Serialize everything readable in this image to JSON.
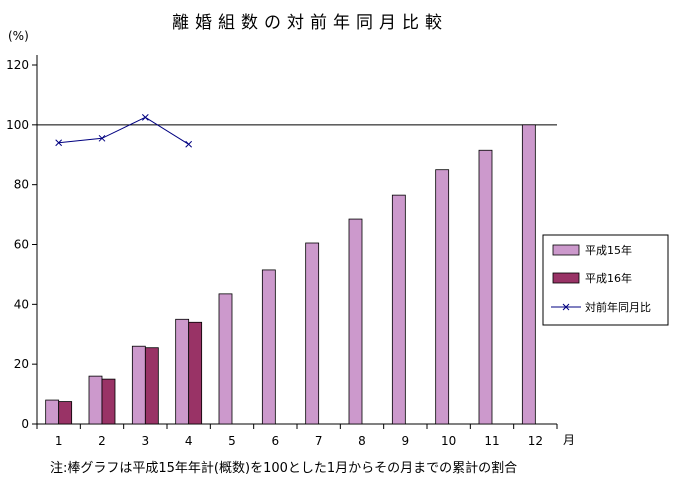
{
  "chart_data": {
    "type": "bar",
    "title": "離婚組数の対前年同月比較",
    "y_unit_label": "(%)",
    "x_unit_label": "月",
    "categories": [
      "1",
      "2",
      "3",
      "4",
      "5",
      "6",
      "7",
      "8",
      "9",
      "10",
      "11",
      "12"
    ],
    "ylim": [
      0,
      120
    ],
    "y_ticks": [
      0,
      20,
      40,
      60,
      80,
      100,
      120
    ],
    "reference_line": 100,
    "grid": false,
    "legend_position": "right",
    "series": [
      {
        "name": "平成15年",
        "kind": "bar",
        "color": "#cc99cc",
        "values": [
          8,
          16,
          26,
          35,
          43.5,
          51.5,
          60.5,
          68.5,
          76.5,
          85,
          91.5,
          100
        ]
      },
      {
        "name": "平成16年",
        "kind": "bar",
        "color": "#993366",
        "values": [
          7.5,
          15,
          25.5,
          34,
          null,
          null,
          null,
          null,
          null,
          null,
          null,
          null
        ]
      },
      {
        "name": "対前年同月比",
        "kind": "line",
        "color": "#000080",
        "marker": "x",
        "values": [
          94,
          95.5,
          102.5,
          93.5,
          null,
          null,
          null,
          null,
          null,
          null,
          null,
          null
        ]
      }
    ],
    "note": "注:棒グラフは平成15年年計(概数)を100とした1月からその月までの累計の割合"
  }
}
